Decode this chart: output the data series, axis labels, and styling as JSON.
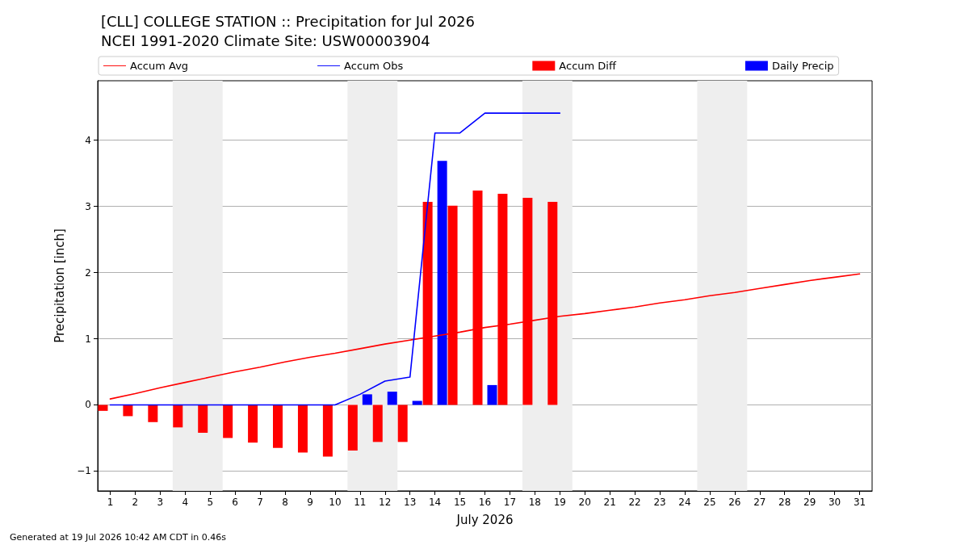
{
  "chart_data": {
    "type": "bar",
    "title": "[CLL] COLLEGE STATION :: Precipitation for Jul 2026",
    "subtitle": "NCEI 1991-2020 Climate Site: USW00003904",
    "xlabel": "July 2026",
    "ylabel": "Precipitation [inch]",
    "x": [
      1,
      2,
      3,
      4,
      5,
      6,
      7,
      8,
      9,
      10,
      11,
      12,
      13,
      14,
      15,
      16,
      17,
      18,
      19,
      20,
      21,
      22,
      23,
      24,
      25,
      26,
      27,
      28,
      29,
      30,
      31
    ],
    "series": [
      {
        "name": "Accum Avg",
        "type": "line",
        "color": "#ff0000",
        "values": [
          0.09,
          0.17,
          0.26,
          0.34,
          0.42,
          0.5,
          0.57,
          0.65,
          0.72,
          0.78,
          0.85,
          0.92,
          0.98,
          1.04,
          1.1,
          1.17,
          1.22,
          1.28,
          1.34,
          1.38,
          1.43,
          1.48,
          1.54,
          1.59,
          1.65,
          1.7,
          1.76,
          1.82,
          1.88,
          1.93,
          1.98
        ]
      },
      {
        "name": "Accum Obs",
        "type": "line",
        "color": "#0000ff",
        "values": [
          0,
          0,
          0,
          0,
          0,
          0,
          0,
          0,
          0,
          0,
          0.16,
          0.36,
          0.42,
          4.11,
          4.11,
          4.41,
          4.41,
          4.41,
          4.41,
          null,
          null,
          null,
          null,
          null,
          null,
          null,
          null,
          null,
          null,
          null,
          null
        ]
      },
      {
        "name": "Accum Diff",
        "color": "#ff0000",
        "values": [
          -0.09,
          -0.17,
          -0.26,
          -0.34,
          -0.42,
          -0.5,
          -0.57,
          -0.65,
          -0.72,
          -0.78,
          -0.69,
          -0.56,
          -0.56,
          3.07,
          3.01,
          3.24,
          3.19,
          3.13,
          3.07,
          null,
          null,
          null,
          null,
          null,
          null,
          null,
          null,
          null,
          null,
          null,
          null
        ]
      },
      {
        "name": "Daily Precip",
        "color": "#0000ff",
        "values": [
          0,
          0,
          0,
          0,
          0,
          0,
          0,
          0,
          0,
          0,
          0.16,
          0.2,
          0.06,
          3.69,
          0,
          0.3,
          0,
          0,
          0,
          null,
          null,
          null,
          null,
          null,
          null,
          null,
          null,
          null,
          null,
          null,
          null
        ]
      }
    ],
    "xlim": [
      0.5,
      31.5
    ],
    "xticks": [
      1,
      2,
      3,
      4,
      5,
      6,
      7,
      8,
      9,
      10,
      11,
      12,
      13,
      14,
      15,
      16,
      17,
      18,
      19,
      20,
      21,
      22,
      23,
      24,
      25,
      26,
      27,
      28,
      29,
      30,
      31
    ],
    "ylim": [
      -1.3,
      4.9
    ],
    "yticks": [
      {
        "value": -1,
        "label": "−1"
      },
      0,
      1,
      2,
      3,
      4
    ],
    "bands": [
      {
        "axis": "x",
        "from": 3.5,
        "to": 5.5,
        "color": "#eeeeee"
      },
      {
        "axis": "x",
        "from": 10.5,
        "to": 12.5,
        "color": "#eeeeee"
      },
      {
        "axis": "x",
        "from": 17.5,
        "to": 19.5,
        "color": "#eeeeee"
      },
      {
        "axis": "x",
        "from": 24.5,
        "to": 26.5,
        "color": "#eeeeee"
      }
    ],
    "grid": "y",
    "legend": "top",
    "marker": "none",
    "annotations": [
      "Generated at 19 Jul 2026 10:42 AM CDT in 0.46s"
    ]
  }
}
